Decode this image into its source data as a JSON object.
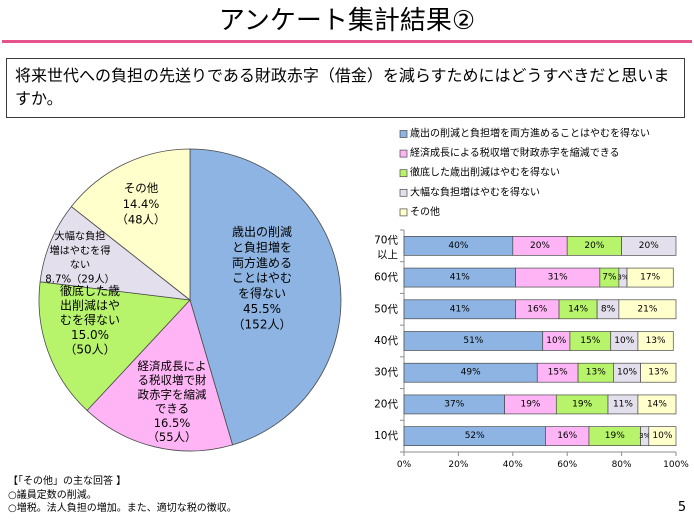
{
  "header": {
    "title": "アンケート集計結果②"
  },
  "question": {
    "text": "将来世代への負担の先送りである財政赤字（借金）を減らすためにはどうすべきだと思いますか。"
  },
  "colors": {
    "accent_line": "#E5528C",
    "series": [
      "#8DB4E2",
      "#FFB5F5",
      "#B7F46B",
      "#E4DFEC",
      "#FFFFCC"
    ],
    "outline": "#4A4A4A",
    "axis": "#8C8C8C"
  },
  "chart_data": [
    {
      "type": "pie",
      "slices": [
        {
          "value": 45.5,
          "label_lines": [
            "歳出の削減",
            "と負担増を",
            "両方進める",
            "ことはやむ",
            "を得ない",
            "45.5%",
            "（152人）"
          ]
        },
        {
          "value": 16.5,
          "label_lines": [
            "経済成長によ",
            "る税収増で財",
            "政赤字を縮減",
            "できる",
            "16.5%",
            "（55人）"
          ]
        },
        {
          "value": 15.0,
          "label_lines": [
            "徹底した歳",
            "出削減はや",
            "むを得ない",
            "15.0%",
            "（50人）"
          ]
        },
        {
          "value": 8.7,
          "label_lines": [
            "大幅な負担",
            "増はやむを得",
            "ない",
            "8.7%（29人）"
          ]
        },
        {
          "value": 14.4,
          "label_lines": [
            "その他",
            "14.4%",
            "（48人）"
          ]
        }
      ]
    },
    {
      "type": "bar",
      "orientation": "horizontal",
      "stacked": true,
      "categories": [
        [
          "70代",
          "以上"
        ],
        [
          "60代"
        ],
        [
          "50代"
        ],
        [
          "40代"
        ],
        [
          "30代"
        ],
        [
          "20代"
        ],
        [
          "10代"
        ]
      ],
      "series": [
        {
          "name": "歳出の削減と負担増を両方進めることはやむを得ない",
          "values": [
            40,
            41,
            41,
            51,
            49,
            37,
            52
          ]
        },
        {
          "name": "経済成長による税収増で財政赤字を縮減できる",
          "values": [
            20,
            31,
            16,
            10,
            15,
            19,
            16
          ]
        },
        {
          "name": "徹底した歳出削減はやむを得ない",
          "values": [
            20,
            7,
            14,
            15,
            13,
            19,
            19
          ]
        },
        {
          "name": "大幅な負担増はやむを得ない",
          "values": [
            20,
            3,
            8,
            10,
            10,
            11,
            3
          ]
        },
        {
          "name": "その他",
          "values": [
            0,
            17,
            21,
            13,
            13,
            14,
            10
          ]
        }
      ],
      "xlim": [
        0,
        100
      ],
      "xticks": [
        "0%",
        "20%",
        "40%",
        "60%",
        "80%",
        "100%"
      ],
      "legend": "top",
      "grid": false
    }
  ],
  "notes": {
    "heading": "【「その他」の主な回答 】",
    "items": [
      "○議員定数の削減。",
      "○増税。法人負担の増加。また、適切な税の徴収。"
    ]
  },
  "page_number": "5"
}
